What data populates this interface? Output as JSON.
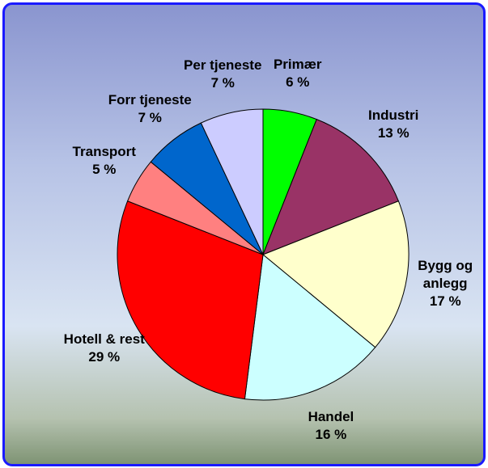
{
  "chart_data": {
    "type": "pie",
    "categories": [
      "Primær",
      "Industri",
      "Bygg og anlegg",
      "Handel",
      "Hotell & rest",
      "Transport",
      "Forr tjeneste",
      "Per tjeneste"
    ],
    "values": [
      6,
      13,
      17,
      16,
      29,
      5,
      7,
      7
    ],
    "value_labels": [
      "6 %",
      "13 %",
      "17 %",
      "16 %",
      "29 %",
      "5 %",
      "7 %",
      "7 %"
    ],
    "colors": [
      "#00ff00",
      "#993366",
      "#ffffcc",
      "#ccffff",
      "#ff0000",
      "#ff8080",
      "#0066cc",
      "#ccccff"
    ]
  }
}
